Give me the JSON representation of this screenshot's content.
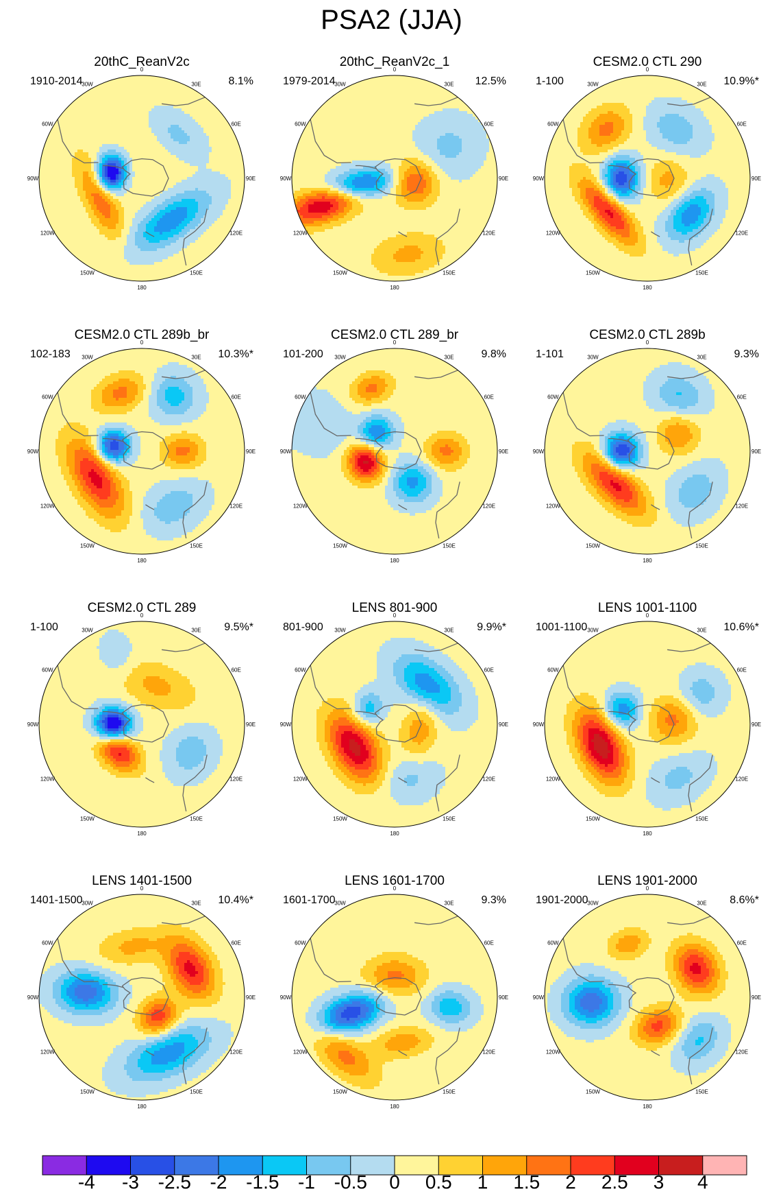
{
  "figure": {
    "title": "PSA2 (JJA)"
  },
  "longitude_labels": [
    "0",
    "30E",
    "60E",
    "90E",
    "120E",
    "150E",
    "180",
    "150W",
    "120W",
    "90W",
    "60W",
    "30W"
  ],
  "colorbar": {
    "labels": [
      "-4",
      "-3",
      "-2.5",
      "-2",
      "-1.5",
      "-1",
      "-0.5",
      "0",
      "0.5",
      "1",
      "1.5",
      "2",
      "2.5",
      "3",
      "4"
    ],
    "colors": [
      "#8a2be2",
      "#1e0af0",
      "#2850e6",
      "#3c78e6",
      "#1e96f0",
      "#0ac8f5",
      "#78c8f0",
      "#b4dcf0",
      "#fff59b",
      "#ffd232",
      "#ffa50a",
      "#ff7314",
      "#ff3c1e",
      "#e1001e",
      "#c81e1e",
      "#ffb4b4"
    ]
  },
  "panels": [
    {
      "title": "20thC_ReanV2c",
      "period": "1910-2014",
      "variance": "8.1%",
      "anomalies": [
        {
          "lon": -80,
          "r": 0.3,
          "amp": -4.0,
          "sx": 0.12,
          "sy": 0.1
        },
        {
          "lon": -115,
          "r": 0.45,
          "amp": 1.8,
          "sx": 0.28,
          "sy": 0.1
        },
        {
          "lon": 145,
          "r": 0.5,
          "amp": -2.0,
          "sx": 0.3,
          "sy": 0.13
        },
        {
          "lon": 40,
          "r": 0.55,
          "amp": -0.8,
          "sx": 0.2,
          "sy": 0.12
        },
        {
          "lon": 0,
          "r": 0.15,
          "amp": 0.3,
          "sx": 0.2,
          "sy": 0.2
        }
      ]
    },
    {
      "title": "20thC_ReanV2c_1",
      "period": "1979-2014",
      "variance": "12.5%",
      "anomalies": [
        {
          "lon": -110,
          "r": 0.72,
          "amp": 3.0,
          "sx": 0.12,
          "sy": 0.28
        },
        {
          "lon": -100,
          "r": 0.35,
          "amp": -3.0,
          "sx": 0.1,
          "sy": 0.24
        },
        {
          "lon": 100,
          "r": 0.2,
          "amp": 2.0,
          "sx": 0.15,
          "sy": 0.15
        },
        {
          "lon": 60,
          "r": 0.6,
          "amp": -0.8,
          "sx": 0.2,
          "sy": 0.22
        },
        {
          "lon": 170,
          "r": 0.75,
          "amp": 1.0,
          "sx": 0.25,
          "sy": 0.14
        }
      ]
    },
    {
      "title": "CESM2.0 CTL 290",
      "period": "1-100",
      "variance": "10.9%*",
      "anomalies": [
        {
          "lon": -90,
          "r": 0.25,
          "amp": -3.0,
          "sx": 0.14,
          "sy": 0.12
        },
        {
          "lon": -40,
          "r": 0.62,
          "amp": 1.5,
          "sx": 0.18,
          "sy": 0.14
        },
        {
          "lon": -130,
          "r": 0.5,
          "amp": 2.5,
          "sx": 0.28,
          "sy": 0.1
        },
        {
          "lon": 130,
          "r": 0.55,
          "amp": -2.0,
          "sx": 0.2,
          "sy": 0.13
        },
        {
          "lon": 30,
          "r": 0.55,
          "amp": -1.0,
          "sx": 0.2,
          "sy": 0.15
        },
        {
          "lon": 95,
          "r": 0.2,
          "amp": 1.0,
          "sx": 0.15,
          "sy": 0.15
        }
      ]
    },
    {
      "title": "CESM2.0 CTL 289b_br",
      "period": "102-183",
      "variance": "10.3%*",
      "anomalies": [
        {
          "lon": -80,
          "r": 0.28,
          "amp": -3.2,
          "sx": 0.11,
          "sy": 0.11
        },
        {
          "lon": -120,
          "r": 0.52,
          "amp": 2.5,
          "sx": 0.3,
          "sy": 0.14
        },
        {
          "lon": -20,
          "r": 0.6,
          "amp": 1.5,
          "sx": 0.18,
          "sy": 0.12
        },
        {
          "lon": 90,
          "r": 0.4,
          "amp": 1.5,
          "sx": 0.12,
          "sy": 0.14
        },
        {
          "lon": 30,
          "r": 0.62,
          "amp": -1.4,
          "sx": 0.16,
          "sy": 0.15
        },
        {
          "lon": 150,
          "r": 0.62,
          "amp": -1.0,
          "sx": 0.22,
          "sy": 0.15
        }
      ]
    },
    {
      "title": "CESM2.0 CTL 289_br",
      "period": "101-200",
      "variance": "9.8%",
      "anomalies": [
        {
          "lon": -110,
          "r": 0.3,
          "amp": 3.0,
          "sx": 0.13,
          "sy": 0.12
        },
        {
          "lon": -45,
          "r": 0.25,
          "amp": -2.2,
          "sx": 0.12,
          "sy": 0.11
        },
        {
          "lon": 150,
          "r": 0.35,
          "amp": -1.8,
          "sx": 0.14,
          "sy": 0.14
        },
        {
          "lon": 90,
          "r": 0.5,
          "amp": 1.5,
          "sx": 0.12,
          "sy": 0.14
        },
        {
          "lon": -20,
          "r": 0.65,
          "amp": 1.5,
          "sx": 0.14,
          "sy": 0.1
        },
        {
          "lon": -70,
          "r": 0.8,
          "amp": -0.6,
          "sx": 0.2,
          "sy": 0.25
        }
      ]
    },
    {
      "title": "CESM2.0 CTL 289b",
      "period": "1-101",
      "variance": "9.3%",
      "anomalies": [
        {
          "lon": -90,
          "r": 0.25,
          "amp": -3.2,
          "sx": 0.12,
          "sy": 0.12
        },
        {
          "lon": -135,
          "r": 0.45,
          "amp": 2.5,
          "sx": 0.28,
          "sy": 0.12
        },
        {
          "lon": 60,
          "r": 0.35,
          "amp": 1.4,
          "sx": 0.14,
          "sy": 0.14
        },
        {
          "lon": 30,
          "r": 0.62,
          "amp": -1.2,
          "sx": 0.18,
          "sy": 0.15
        },
        {
          "lon": 130,
          "r": 0.6,
          "amp": -1.0,
          "sx": 0.2,
          "sy": 0.15
        }
      ]
    },
    {
      "title": "CESM2.0 CTL 289",
      "period": "1-100",
      "variance": "9.5%*",
      "anomalies": [
        {
          "lon": -90,
          "r": 0.28,
          "amp": -4.0,
          "sx": 0.11,
          "sy": 0.12
        },
        {
          "lon": -140,
          "r": 0.35,
          "amp": 2.5,
          "sx": 0.16,
          "sy": 0.11
        },
        {
          "lon": 20,
          "r": 0.4,
          "amp": 1.0,
          "sx": 0.28,
          "sy": 0.15
        },
        {
          "lon": 120,
          "r": 0.55,
          "amp": -1.0,
          "sx": 0.18,
          "sy": 0.15
        },
        {
          "lon": -20,
          "r": 0.7,
          "amp": -0.6,
          "sx": 0.12,
          "sy": 0.16
        }
      ]
    },
    {
      "title": "LENS 801-900",
      "period": "801-900",
      "variance": "9.9%*",
      "anomalies": [
        {
          "lon": -120,
          "r": 0.45,
          "amp": 3.0,
          "sx": 0.26,
          "sy": 0.15
        },
        {
          "lon": 40,
          "r": 0.5,
          "amp": -2.0,
          "sx": 0.26,
          "sy": 0.15
        },
        {
          "lon": -60,
          "r": 0.3,
          "amp": -1.5,
          "sx": 0.12,
          "sy": 0.1
        },
        {
          "lon": 100,
          "r": 0.25,
          "amp": 1.2,
          "sx": 0.2,
          "sy": 0.12
        },
        {
          "lon": 165,
          "r": 0.55,
          "amp": -0.8,
          "sx": 0.2,
          "sy": 0.15
        }
      ]
    },
    {
      "title": "LENS 1001-1100",
      "period": "1001-1100",
      "variance": "10.6%*",
      "anomalies": [
        {
          "lon": -115,
          "r": 0.5,
          "amp": 3.2,
          "sx": 0.26,
          "sy": 0.14
        },
        {
          "lon": -60,
          "r": 0.28,
          "amp": -2.0,
          "sx": 0.12,
          "sy": 0.12
        },
        {
          "lon": 80,
          "r": 0.25,
          "amp": 1.5,
          "sx": 0.16,
          "sy": 0.16
        },
        {
          "lon": 60,
          "r": 0.6,
          "amp": -1.0,
          "sx": 0.15,
          "sy": 0.15
        },
        {
          "lon": 150,
          "r": 0.6,
          "amp": -0.8,
          "sx": 0.22,
          "sy": 0.15
        }
      ]
    },
    {
      "title": "LENS 1401-1500",
      "period": "1401-1500",
      "variance": "10.4%*",
      "anomalies": [
        {
          "lon": -85,
          "r": 0.55,
          "amp": -2.5,
          "sx": 0.14,
          "sy": 0.2
        },
        {
          "lon": 60,
          "r": 0.55,
          "amp": 2.5,
          "sx": 0.22,
          "sy": 0.14
        },
        {
          "lon": 140,
          "r": 0.25,
          "amp": 2.2,
          "sx": 0.14,
          "sy": 0.12
        },
        {
          "lon": 155,
          "r": 0.6,
          "amp": -2.0,
          "sx": 0.3,
          "sy": 0.15
        },
        {
          "lon": -10,
          "r": 0.5,
          "amp": 1.0,
          "sx": 0.24,
          "sy": 0.12
        }
      ]
    },
    {
      "title": "LENS 1601-1700",
      "period": "1601-1700",
      "variance": "9.3%",
      "anomalies": [
        {
          "lon": -110,
          "r": 0.45,
          "amp": -3.0,
          "sx": 0.12,
          "sy": 0.22
        },
        {
          "lon": 0,
          "r": 0.2,
          "amp": 1.5,
          "sx": 0.2,
          "sy": 0.14
        },
        {
          "lon": 100,
          "r": 0.55,
          "amp": -1.5,
          "sx": 0.12,
          "sy": 0.15
        },
        {
          "lon": -140,
          "r": 0.75,
          "amp": 1.5,
          "sx": 0.25,
          "sy": 0.12
        },
        {
          "lon": 170,
          "r": 0.45,
          "amp": 1.2,
          "sx": 0.2,
          "sy": 0.1
        }
      ]
    },
    {
      "title": "LENS 1901-2000",
      "period": "1901-2000",
      "variance": "8.6%*",
      "anomalies": [
        {
          "lon": -95,
          "r": 0.55,
          "amp": -2.5,
          "sx": 0.16,
          "sy": 0.18
        },
        {
          "lon": 60,
          "r": 0.55,
          "amp": 2.5,
          "sx": 0.18,
          "sy": 0.14
        },
        {
          "lon": 160,
          "r": 0.3,
          "amp": 2.0,
          "sx": 0.16,
          "sy": 0.12
        },
        {
          "lon": -20,
          "r": 0.55,
          "amp": 1.2,
          "sx": 0.14,
          "sy": 0.1
        },
        {
          "lon": 130,
          "r": 0.65,
          "amp": -1.2,
          "sx": 0.18,
          "sy": 0.14
        }
      ]
    }
  ]
}
